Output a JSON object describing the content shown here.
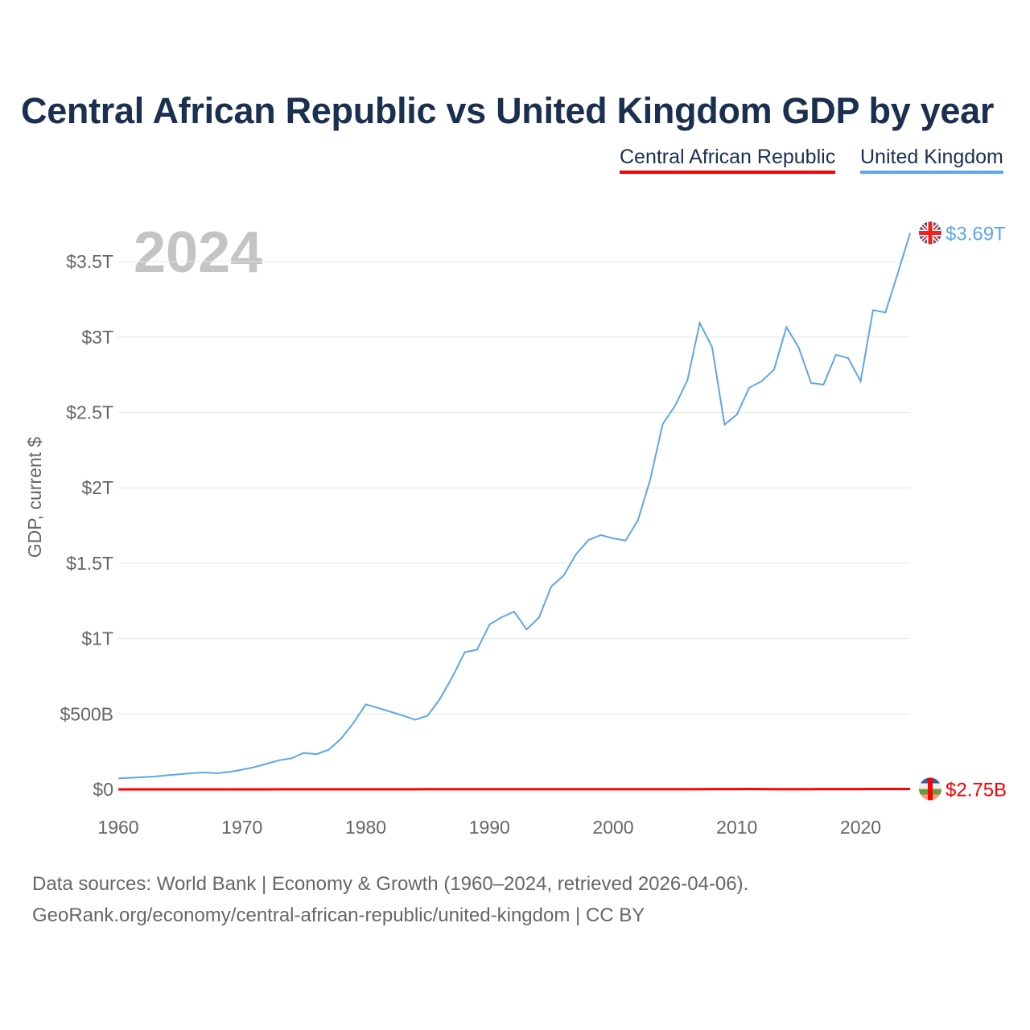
{
  "chart_data": {
    "type": "line",
    "title": "Central African Republic vs United Kingdom GDP by year",
    "ylabel": "GDP, current $",
    "xlabel": "",
    "xlim": [
      1960,
      2024
    ],
    "ylim": [
      0,
      3.7
    ],
    "y_unit": "trillion US$",
    "yticks": [
      0,
      0.5,
      1,
      1.5,
      2,
      2.5,
      3,
      3.5
    ],
    "ytick_labels": [
      "$0",
      "$500B",
      "$1T",
      "$1.5T",
      "$2T",
      "$2.5T",
      "$3T",
      "$3.5T"
    ],
    "xticks": [
      1960,
      1970,
      1980,
      1990,
      2000,
      2010,
      2020
    ],
    "xtick_labels": [
      "1960",
      "1970",
      "1980",
      "1990",
      "2000",
      "2010",
      "2020"
    ],
    "grid": true,
    "legend_position": "top-right",
    "year_watermark": "2024",
    "x": [
      1960,
      1961,
      1962,
      1963,
      1964,
      1965,
      1966,
      1967,
      1968,
      1969,
      1970,
      1971,
      1972,
      1973,
      1974,
      1975,
      1976,
      1977,
      1978,
      1979,
      1980,
      1981,
      1982,
      1983,
      1984,
      1985,
      1986,
      1987,
      1988,
      1989,
      1990,
      1991,
      1992,
      1993,
      1994,
      1995,
      1996,
      1997,
      1998,
      1999,
      2000,
      2001,
      2002,
      2003,
      2004,
      2005,
      2006,
      2007,
      2008,
      2009,
      2010,
      2011,
      2012,
      2013,
      2014,
      2015,
      2016,
      2017,
      2018,
      2019,
      2020,
      2021,
      2022,
      2023,
      2024
    ],
    "series": [
      {
        "name": "Central African Republic",
        "color": "#ff0000",
        "end_label": "$2.75B",
        "flag": "central-african-republic-flag",
        "values": [
          0.00011,
          0.00012,
          0.00013,
          0.00014,
          0.00015,
          0.00016,
          0.00017,
          0.00018,
          0.00018,
          0.00019,
          0.00019,
          0.00021,
          0.00024,
          0.00029,
          0.00032,
          0.00035,
          0.00042,
          0.00048,
          0.00057,
          0.00065,
          0.0008,
          0.00071,
          0.00067,
          0.00064,
          0.0006,
          0.00087,
          0.00101,
          0.00104,
          0.00113,
          0.00114,
          0.00149,
          0.00144,
          0.00147,
          0.00128,
          0.00088,
          0.00112,
          0.00101,
          0.00094,
          0.00099,
          0.00102,
          0.00091,
          0.00092,
          0.00096,
          0.00114,
          0.00127,
          0.00135,
          0.00147,
          0.0017,
          0.00198,
          0.00199,
          0.00203,
          0.00244,
          0.00218,
          0.00152,
          0.00174,
          0.0017,
          0.00184,
          0.00207,
          0.00232,
          0.00229,
          0.00233,
          0.00252,
          0.00247,
          0.00263,
          0.00275
        ]
      },
      {
        "name": "United Kingdom",
        "color": "#5da6ea",
        "end_label": "$3.69T",
        "flag": "united-kingdom-flag",
        "values": [
          0.073,
          0.077,
          0.081,
          0.086,
          0.094,
          0.101,
          0.108,
          0.112,
          0.107,
          0.116,
          0.131,
          0.148,
          0.17,
          0.193,
          0.206,
          0.242,
          0.233,
          0.263,
          0.336,
          0.439,
          0.564,
          0.54,
          0.515,
          0.49,
          0.462,
          0.489,
          0.601,
          0.745,
          0.91,
          0.926,
          1.093,
          1.142,
          1.179,
          1.061,
          1.14,
          1.345,
          1.419,
          1.56,
          1.653,
          1.687,
          1.665,
          1.65,
          1.785,
          2.055,
          2.422,
          2.544,
          2.713,
          3.094,
          2.931,
          2.419,
          2.486,
          2.664,
          2.707,
          2.784,
          3.065,
          2.93,
          2.695,
          2.684,
          2.882,
          2.86,
          2.706,
          3.178,
          3.163,
          3.42,
          3.69
        ]
      }
    ]
  },
  "source": {
    "line1": "Data sources: World Bank | Economy & Growth (1960–2024, retrieved 2026-04-06).",
    "line2": "GeoRank.org/economy/central-african-republic/united-kingdom | CC BY"
  }
}
